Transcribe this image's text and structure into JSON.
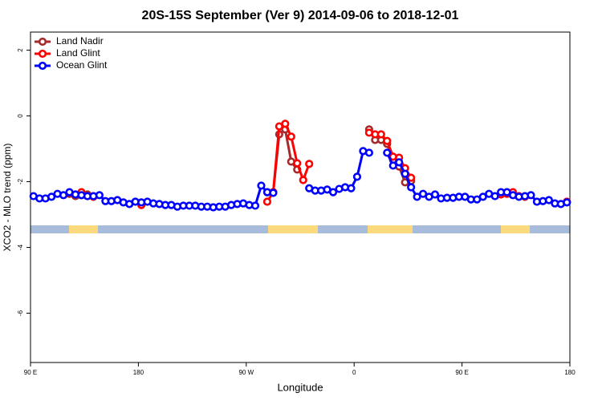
{
  "chart_data": {
    "type": "line",
    "title": "20S-15S September (Ver 9)   2014-09-06 to 2018-12-01",
    "xlabel": "Longitude",
    "ylabel": "XCO2 - MLO trend (ppm)",
    "xlim": [
      90,
      540
    ],
    "ylim": [
      -7.5,
      2.55
    ],
    "xticks": [
      {
        "value": 90,
        "label": "90 E"
      },
      {
        "value": 180,
        "label": "180"
      },
      {
        "value": 270,
        "label": "90 W"
      },
      {
        "value": 360,
        "label": "0"
      },
      {
        "value": 450,
        "label": "90 E"
      },
      {
        "value": 540,
        "label": "180"
      }
    ],
    "yticks": [
      2,
      0,
      -2,
      -4,
      -6
    ],
    "legend": "topleft",
    "series": [
      {
        "name": "Land Nadir",
        "color": "#a52a2a",
        "x": [
          122.5,
          127.5,
          132.5,
          137.5,
          142.5,
          null,
          287.5,
          292.5,
          297.5,
          302.5,
          307.5,
          312.5,
          null,
          372.5,
          377.5,
          382.5,
          387.5,
          392.5,
          397.5,
          402.5,
          407.5,
          null,
          482.5,
          487.5,
          492.5,
          497.5,
          502.5
        ],
        "values": [
          -2.37,
          -2.44,
          -2.41,
          -2.39,
          -2.44,
          null,
          -2.32,
          -2.32,
          -0.56,
          -0.41,
          -1.39,
          -1.63,
          null,
          -0.41,
          -0.73,
          -0.73,
          -0.85,
          -1.34,
          -1.54,
          -2.02,
          -1.98,
          null,
          -2.37,
          -2.32,
          -2.37,
          -2.44,
          -2.44
        ]
      },
      {
        "name": "Land Glint",
        "color": "#ff0000",
        "x": [
          127.5,
          132.5,
          137.5,
          142.5,
          null,
          182.5,
          null,
          287.5,
          292.5,
          297.5,
          302.5,
          307.5,
          312.5,
          317.5,
          322.5,
          null,
          372.5,
          377.5,
          382.5,
          387.5,
          392.5,
          397.5,
          402.5,
          407.5,
          null,
          482.5,
          487.5,
          492.5,
          497.5,
          502.5,
          null,
          537.5
        ],
        "values": [
          -2.39,
          -2.32,
          -2.44,
          -2.46,
          null,
          -2.71,
          null,
          -2.61,
          -2.32,
          -0.32,
          -0.24,
          -0.63,
          -1.44,
          -1.95,
          -1.46,
          null,
          -0.51,
          -0.56,
          -0.56,
          -0.76,
          -1.24,
          -1.27,
          -1.59,
          -1.88,
          null,
          -2.39,
          -2.37,
          -2.32,
          -2.44,
          -2.46,
          null,
          -2.61
        ]
      },
      {
        "name": "Ocean Glint",
        "color": "#0000ff",
        "x": [
          92.5,
          97.5,
          102.5,
          107.5,
          112.5,
          117.5,
          122.5,
          127.5,
          132.5,
          137.5,
          142.5,
          147.5,
          152.5,
          157.5,
          162.5,
          167.5,
          172.5,
          177.5,
          182.5,
          187.5,
          192.5,
          197.5,
          202.5,
          207.5,
          212.5,
          217.5,
          222.5,
          227.5,
          232.5,
          237.5,
          242.5,
          247.5,
          252.5,
          257.5,
          262.5,
          267.5,
          272.5,
          277.5,
          282.5,
          287.5,
          292.5,
          null,
          322.5,
          327.5,
          332.5,
          337.5,
          342.5,
          347.5,
          352.5,
          357.5,
          362.5,
          367.5,
          372.5,
          null,
          387.5,
          392.5,
          397.5,
          402.5,
          407.5,
          412.5,
          417.5,
          422.5,
          427.5,
          432.5,
          437.5,
          442.5,
          447.5,
          452.5,
          457.5,
          462.5,
          467.5,
          472.5,
          477.5,
          482.5,
          487.5,
          492.5,
          497.5,
          502.5,
          507.5,
          512.5,
          517.5,
          522.5,
          527.5,
          532.5,
          537.5
        ],
        "values": [
          -2.44,
          -2.51,
          -2.51,
          -2.46,
          -2.37,
          -2.41,
          -2.32,
          -2.39,
          -2.41,
          -2.44,
          -2.44,
          -2.41,
          -2.59,
          -2.59,
          -2.56,
          -2.63,
          -2.68,
          -2.61,
          -2.63,
          -2.61,
          -2.66,
          -2.68,
          -2.71,
          -2.71,
          -2.76,
          -2.73,
          -2.73,
          -2.73,
          -2.76,
          -2.76,
          -2.78,
          -2.76,
          -2.76,
          -2.71,
          -2.68,
          -2.66,
          -2.71,
          -2.73,
          -2.12,
          -2.32,
          -2.34,
          null,
          -2.2,
          -2.27,
          -2.27,
          -2.24,
          -2.32,
          -2.22,
          -2.17,
          -2.2,
          -1.85,
          -1.07,
          -1.12,
          null,
          -1.12,
          -1.51,
          -1.41,
          -1.76,
          -2.17,
          -2.46,
          -2.37,
          -2.46,
          -2.39,
          -2.51,
          -2.49,
          -2.49,
          -2.46,
          -2.46,
          -2.54,
          -2.54,
          -2.46,
          -2.37,
          -2.44,
          -2.32,
          -2.32,
          -2.41,
          -2.46,
          -2.44,
          -2.41,
          -2.61,
          -2.59,
          -2.56,
          -2.66,
          -2.68,
          -2.63
        ]
      }
    ]
  }
}
